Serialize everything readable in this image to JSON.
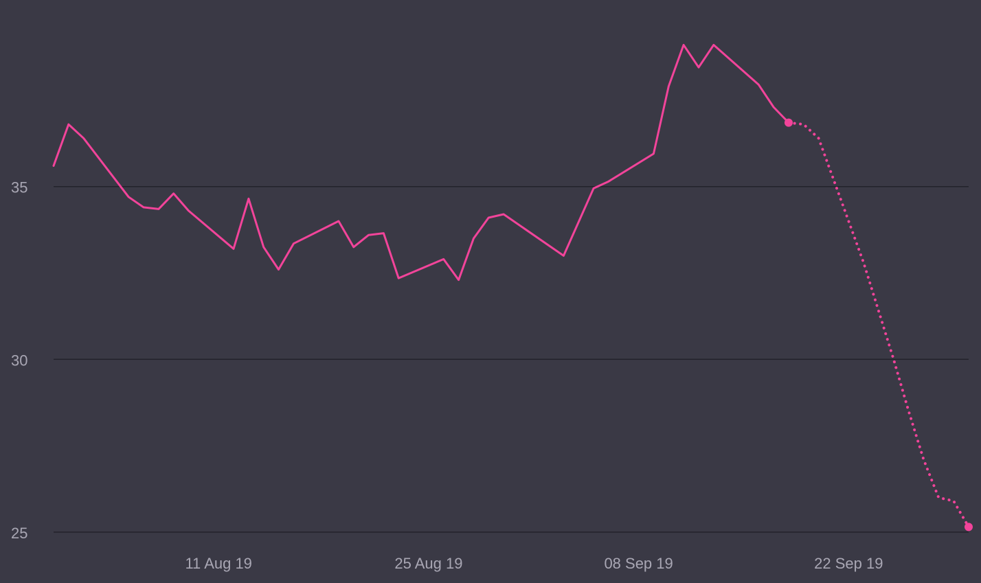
{
  "chart_data": {
    "type": "line",
    "title": "",
    "xlabel": "",
    "ylabel": "",
    "grid": "horizontal",
    "ylim": [
      24.7,
      40.4
    ],
    "yticks": [
      25,
      30,
      35
    ],
    "xlim": [
      "2019-07-31",
      "2019-09-30"
    ],
    "xticks": [
      {
        "date": "2019-08-11",
        "label": "11 Aug 19"
      },
      {
        "date": "2019-08-25",
        "label": "25 Aug 19"
      },
      {
        "date": "2019-09-08",
        "label": "08 Sep 19"
      },
      {
        "date": "2019-09-22",
        "label": "22 Sep 19"
      }
    ],
    "series": [
      {
        "style": "solid",
        "color": "#f2449a",
        "points": [
          {
            "x": "2019-07-31",
            "y": 35.6
          },
          {
            "x": "2019-08-01",
            "y": 36.8
          },
          {
            "x": "2019-08-02",
            "y": 36.4
          },
          {
            "x": "2019-08-05",
            "y": 34.7
          },
          {
            "x": "2019-08-06",
            "y": 34.4
          },
          {
            "x": "2019-08-07",
            "y": 34.35
          },
          {
            "x": "2019-08-08",
            "y": 34.8
          },
          {
            "x": "2019-08-09",
            "y": 34.3
          },
          {
            "x": "2019-08-12",
            "y": 33.2
          },
          {
            "x": "2019-08-13",
            "y": 34.65
          },
          {
            "x": "2019-08-14",
            "y": 33.25
          },
          {
            "x": "2019-08-15",
            "y": 32.6
          },
          {
            "x": "2019-08-16",
            "y": 33.35
          },
          {
            "x": "2019-08-19",
            "y": 34.0
          },
          {
            "x": "2019-08-20",
            "y": 33.25
          },
          {
            "x": "2019-08-21",
            "y": 33.6
          },
          {
            "x": "2019-08-22",
            "y": 33.65
          },
          {
            "x": "2019-08-23",
            "y": 32.35
          },
          {
            "x": "2019-08-26",
            "y": 32.9
          },
          {
            "x": "2019-08-27",
            "y": 32.3
          },
          {
            "x": "2019-08-28",
            "y": 33.5
          },
          {
            "x": "2019-08-29",
            "y": 34.1
          },
          {
            "x": "2019-08-30",
            "y": 34.2
          },
          {
            "x": "2019-09-03",
            "y": 33.0
          },
          {
            "x": "2019-09-05",
            "y": 34.95
          },
          {
            "x": "2019-09-06",
            "y": 35.15
          },
          {
            "x": "2019-09-09",
            "y": 35.95
          },
          {
            "x": "2019-09-10",
            "y": 37.9
          },
          {
            "x": "2019-09-11",
            "y": 39.1
          },
          {
            "x": "2019-09-12",
            "y": 38.45
          },
          {
            "x": "2019-09-13",
            "y": 39.1
          },
          {
            "x": "2019-09-16",
            "y": 37.95
          },
          {
            "x": "2019-09-17",
            "y": 37.3
          },
          {
            "x": "2019-09-18",
            "y": 36.85
          }
        ]
      },
      {
        "style": "dotted",
        "color": "#f2449a",
        "points": [
          {
            "x": "2019-09-18",
            "y": 36.85
          },
          {
            "x": "2019-09-19",
            "y": 36.8
          },
          {
            "x": "2019-09-20",
            "y": 36.4
          },
          {
            "x": "2019-09-21",
            "y": 35.2
          },
          {
            "x": "2019-09-22",
            "y": 34.0
          },
          {
            "x": "2019-09-23",
            "y": 32.8
          },
          {
            "x": "2019-09-24",
            "y": 31.4
          },
          {
            "x": "2019-09-25",
            "y": 30.0
          },
          {
            "x": "2019-09-26",
            "y": 28.5
          },
          {
            "x": "2019-09-27",
            "y": 27.1
          },
          {
            "x": "2019-09-28",
            "y": 26.0
          },
          {
            "x": "2019-09-29",
            "y": 25.9
          },
          {
            "x": "2019-09-30",
            "y": 25.15
          }
        ]
      }
    ]
  }
}
